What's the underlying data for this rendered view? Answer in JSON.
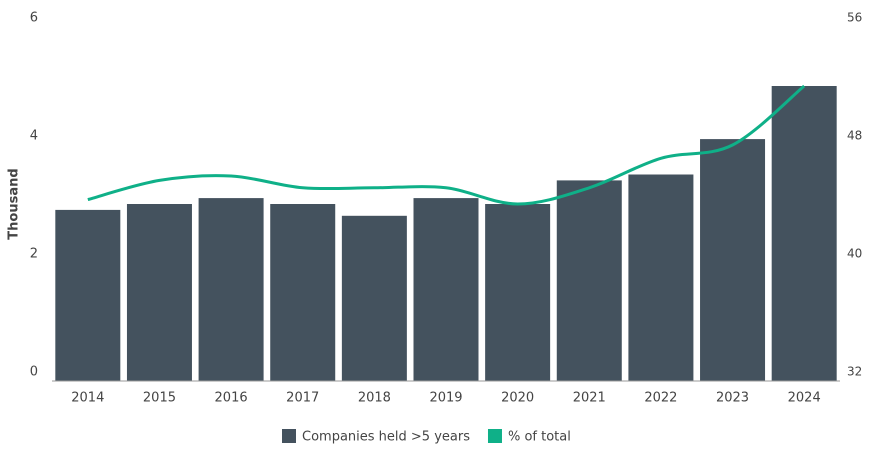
{
  "chart_data": {
    "type": "bar-line",
    "y_axis_label": "Thousand",
    "categories": [
      "2014",
      "2015",
      "2016",
      "2017",
      "2018",
      "2019",
      "2020",
      "2021",
      "2022",
      "2023",
      "2024"
    ],
    "series": [
      {
        "name": "Companies held >5 years",
        "color": "#44525e",
        "type": "bar",
        "values": [
          2.9,
          3.0,
          3.1,
          3.0,
          2.8,
          3.1,
          3.0,
          3.4,
          3.5,
          4.1,
          5.0
        ]
      },
      {
        "name": "% of total",
        "color": "#0fb088",
        "type": "line",
        "axis": "y2",
        "values": [
          44.3,
          45.6,
          45.9,
          45.1,
          45.1,
          45.1,
          44.0,
          45.1,
          47.1,
          48.0,
          52.0
        ]
      }
    ],
    "ylim": [
      0,
      6
    ],
    "yticks": [
      0,
      2,
      4,
      6
    ],
    "y2lim": [
      32,
      56
    ],
    "y2ticks": [
      32,
      40,
      48,
      56
    ]
  }
}
